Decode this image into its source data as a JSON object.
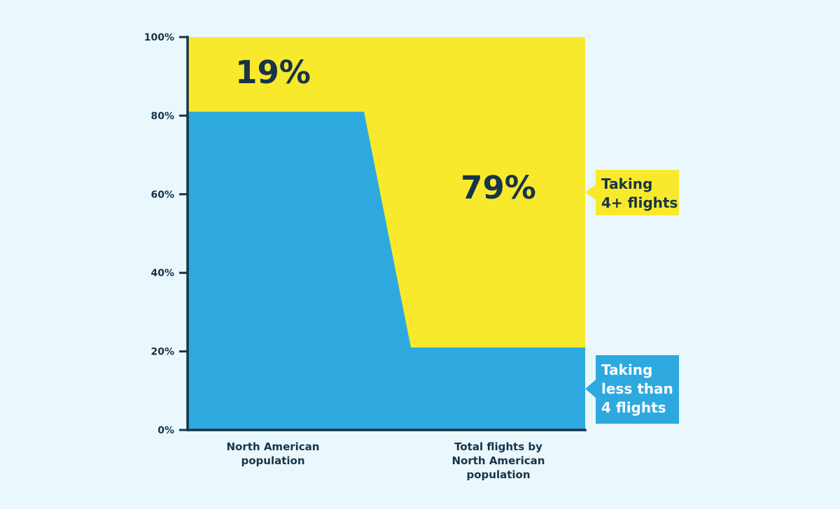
{
  "colors": {
    "background": "#eaf7fd",
    "taking_4plus": "#f8e92d",
    "taking_less_than_4": "#2ea9df",
    "axis": "#173448",
    "text": "#173448",
    "label_text": "#ffffff"
  },
  "chart_data": {
    "type": "area",
    "categories": [
      "North American population",
      "Total flights by North American population"
    ],
    "category_labels": [
      [
        "North American",
        "population"
      ],
      [
        "Total flights by",
        "North American",
        "population"
      ]
    ],
    "series": [
      {
        "name": "Taking 4+ flights",
        "name_lines": [
          "Taking",
          "4+ flights"
        ],
        "values": [
          19,
          79
        ],
        "color": "#f8e92d"
      },
      {
        "name": "Taking less than 4 flights",
        "name_lines": [
          "Taking",
          "less than",
          "4 flights"
        ],
        "values": [
          81,
          21
        ],
        "color": "#2ea9df"
      }
    ],
    "data_labels": [
      "19%",
      "79%"
    ],
    "y_ticks": [
      "0%",
      "20%",
      "40%",
      "60%",
      "80%",
      "100%"
    ],
    "ylim": [
      0,
      100
    ],
    "stacked": true,
    "grid": false,
    "legend": "right"
  }
}
